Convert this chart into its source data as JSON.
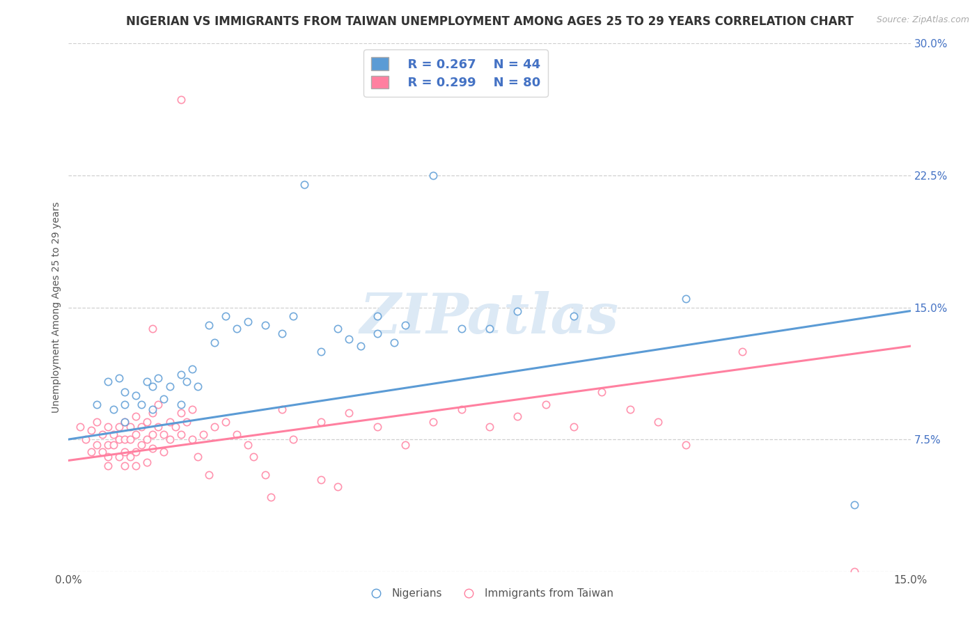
{
  "title": "NIGERIAN VS IMMIGRANTS FROM TAIWAN UNEMPLOYMENT AMONG AGES 25 TO 29 YEARS CORRELATION CHART",
  "source": "Source: ZipAtlas.com",
  "ylabel": "Unemployment Among Ages 25 to 29 years",
  "xlim": [
    0.0,
    0.15
  ],
  "ylim": [
    0.0,
    0.3
  ],
  "yticks": [
    0.0,
    0.075,
    0.15,
    0.225,
    0.3
  ],
  "ytick_labels": [
    "",
    "7.5%",
    "15.0%",
    "22.5%",
    "30.0%"
  ],
  "background_color": "#ffffff",
  "watermark_text": "ZIPatlas",
  "legend_R1": "R = 0.267",
  "legend_N1": "N = 44",
  "legend_R2": "R = 0.299",
  "legend_N2": "N = 80",
  "blue_color": "#5B9BD5",
  "pink_color": "#FF80A0",
  "text_blue": "#4472C4",
  "blue_trend": [
    0.075,
    0.148
  ],
  "pink_trend": [
    0.063,
    0.128
  ],
  "blue_scatter": [
    [
      0.005,
      0.095
    ],
    [
      0.007,
      0.108
    ],
    [
      0.008,
      0.092
    ],
    [
      0.009,
      0.11
    ],
    [
      0.01,
      0.085
    ],
    [
      0.01,
      0.095
    ],
    [
      0.01,
      0.102
    ],
    [
      0.012,
      0.1
    ],
    [
      0.013,
      0.095
    ],
    [
      0.014,
      0.108
    ],
    [
      0.015,
      0.092
    ],
    [
      0.015,
      0.105
    ],
    [
      0.016,
      0.11
    ],
    [
      0.017,
      0.098
    ],
    [
      0.018,
      0.105
    ],
    [
      0.02,
      0.112
    ],
    [
      0.02,
      0.095
    ],
    [
      0.021,
      0.108
    ],
    [
      0.022,
      0.115
    ],
    [
      0.023,
      0.105
    ],
    [
      0.025,
      0.14
    ],
    [
      0.026,
      0.13
    ],
    [
      0.028,
      0.145
    ],
    [
      0.03,
      0.138
    ],
    [
      0.032,
      0.142
    ],
    [
      0.035,
      0.14
    ],
    [
      0.038,
      0.135
    ],
    [
      0.04,
      0.145
    ],
    [
      0.042,
      0.22
    ],
    [
      0.045,
      0.125
    ],
    [
      0.048,
      0.138
    ],
    [
      0.05,
      0.132
    ],
    [
      0.052,
      0.128
    ],
    [
      0.055,
      0.135
    ],
    [
      0.055,
      0.145
    ],
    [
      0.058,
      0.13
    ],
    [
      0.06,
      0.14
    ],
    [
      0.065,
      0.225
    ],
    [
      0.07,
      0.138
    ],
    [
      0.075,
      0.138
    ],
    [
      0.08,
      0.148
    ],
    [
      0.09,
      0.145
    ],
    [
      0.11,
      0.155
    ],
    [
      0.14,
      0.038
    ]
  ],
  "pink_scatter": [
    [
      0.002,
      0.082
    ],
    [
      0.003,
      0.075
    ],
    [
      0.004,
      0.08
    ],
    [
      0.004,
      0.068
    ],
    [
      0.005,
      0.085
    ],
    [
      0.005,
      0.072
    ],
    [
      0.006,
      0.078
    ],
    [
      0.006,
      0.068
    ],
    [
      0.007,
      0.082
    ],
    [
      0.007,
      0.072
    ],
    [
      0.007,
      0.065
    ],
    [
      0.007,
      0.06
    ],
    [
      0.008,
      0.078
    ],
    [
      0.008,
      0.072
    ],
    [
      0.009,
      0.082
    ],
    [
      0.009,
      0.075
    ],
    [
      0.009,
      0.065
    ],
    [
      0.01,
      0.085
    ],
    [
      0.01,
      0.075
    ],
    [
      0.01,
      0.068
    ],
    [
      0.01,
      0.06
    ],
    [
      0.011,
      0.082
    ],
    [
      0.011,
      0.075
    ],
    [
      0.011,
      0.065
    ],
    [
      0.012,
      0.088
    ],
    [
      0.012,
      0.078
    ],
    [
      0.012,
      0.068
    ],
    [
      0.012,
      0.06
    ],
    [
      0.013,
      0.082
    ],
    [
      0.013,
      0.072
    ],
    [
      0.014,
      0.085
    ],
    [
      0.014,
      0.075
    ],
    [
      0.014,
      0.062
    ],
    [
      0.015,
      0.09
    ],
    [
      0.015,
      0.078
    ],
    [
      0.015,
      0.07
    ],
    [
      0.015,
      0.138
    ],
    [
      0.016,
      0.082
    ],
    [
      0.016,
      0.095
    ],
    [
      0.017,
      0.078
    ],
    [
      0.017,
      0.068
    ],
    [
      0.018,
      0.085
    ],
    [
      0.018,
      0.075
    ],
    [
      0.019,
      0.082
    ],
    [
      0.02,
      0.268
    ],
    [
      0.02,
      0.09
    ],
    [
      0.02,
      0.078
    ],
    [
      0.021,
      0.085
    ],
    [
      0.022,
      0.092
    ],
    [
      0.022,
      0.075
    ],
    [
      0.023,
      0.065
    ],
    [
      0.024,
      0.078
    ],
    [
      0.025,
      0.055
    ],
    [
      0.026,
      0.082
    ],
    [
      0.028,
      0.085
    ],
    [
      0.03,
      0.078
    ],
    [
      0.032,
      0.072
    ],
    [
      0.033,
      0.065
    ],
    [
      0.035,
      0.055
    ],
    [
      0.036,
      0.042
    ],
    [
      0.038,
      0.092
    ],
    [
      0.04,
      0.075
    ],
    [
      0.045,
      0.085
    ],
    [
      0.045,
      0.052
    ],
    [
      0.048,
      0.048
    ],
    [
      0.05,
      0.09
    ],
    [
      0.055,
      0.082
    ],
    [
      0.06,
      0.072
    ],
    [
      0.065,
      0.085
    ],
    [
      0.07,
      0.092
    ],
    [
      0.075,
      0.082
    ],
    [
      0.08,
      0.088
    ],
    [
      0.085,
      0.095
    ],
    [
      0.09,
      0.082
    ],
    [
      0.095,
      0.102
    ],
    [
      0.1,
      0.092
    ],
    [
      0.105,
      0.085
    ],
    [
      0.11,
      0.072
    ],
    [
      0.12,
      0.125
    ],
    [
      0.14,
      0.0
    ]
  ],
  "grid_color": "#d0d0d0",
  "title_fontsize": 12,
  "axis_label_fontsize": 10,
  "tick_fontsize": 11,
  "legend_fontsize": 13
}
